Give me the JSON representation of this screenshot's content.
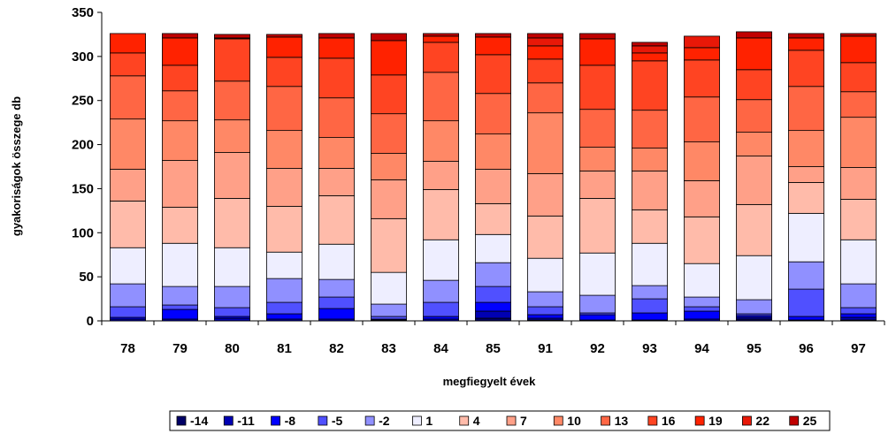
{
  "chart_data": {
    "type": "bar",
    "stacked": true,
    "title": "",
    "xlabel": "megfiegyelt évek",
    "ylabel": "gyakoriságok összege db",
    "ylim": [
      0,
      350
    ],
    "yticks": [
      0,
      50,
      100,
      150,
      200,
      250,
      300,
      350
    ],
    "grid": false,
    "legend_position": "bottom",
    "categories": [
      "78",
      "79",
      "80",
      "81",
      "82",
      "83",
      "84",
      "85",
      "91",
      "92",
      "93",
      "94",
      "95",
      "96",
      "97"
    ],
    "series": [
      {
        "name": "-14",
        "color": "#000066",
        "values": [
          0,
          0,
          0,
          0,
          0,
          0,
          0,
          3,
          1,
          0,
          0,
          0,
          2,
          0,
          1
        ]
      },
      {
        "name": "-11",
        "color": "#0000B3",
        "values": [
          2,
          2,
          3,
          2,
          2,
          1,
          2,
          8,
          2,
          1,
          1,
          2,
          2,
          1,
          3
        ]
      },
      {
        "name": "-8",
        "color": "#0000FF",
        "values": [
          2,
          11,
          2,
          6,
          12,
          1,
          3,
          10,
          4,
          6,
          8,
          9,
          2,
          4,
          4
        ]
      },
      {
        "name": "-5",
        "color": "#5050FF",
        "values": [
          12,
          5,
          10,
          13,
          13,
          3,
          16,
          18,
          9,
          2,
          16,
          5,
          2,
          31,
          7
        ]
      },
      {
        "name": "-2",
        "color": "#9090FF",
        "values": [
          26,
          21,
          24,
          27,
          20,
          14,
          25,
          27,
          17,
          20,
          15,
          11,
          16,
          31,
          27
        ]
      },
      {
        "name": "1",
        "color": "#EEEEFF",
        "values": [
          41,
          49,
          44,
          30,
          40,
          36,
          46,
          32,
          38,
          48,
          48,
          38,
          50,
          55,
          50
        ]
      },
      {
        "name": "4",
        "color": "#FFBBAA",
        "values": [
          53,
          41,
          56,
          52,
          55,
          61,
          57,
          35,
          48,
          62,
          38,
          53,
          58,
          35,
          46
        ]
      },
      {
        "name": "7",
        "color": "#FFA088",
        "values": [
          36,
          53,
          52,
          43,
          31,
          44,
          32,
          39,
          48,
          31,
          44,
          41,
          55,
          18,
          36
        ]
      },
      {
        "name": "10",
        "color": "#FF8866",
        "values": [
          57,
          45,
          37,
          43,
          35,
          30,
          46,
          40,
          69,
          27,
          26,
          44,
          27,
          41,
          57
        ]
      },
      {
        "name": "13",
        "color": "#FF6644",
        "values": [
          49,
          34,
          44,
          50,
          45,
          45,
          55,
          46,
          34,
          43,
          43,
          51,
          37,
          50,
          29
        ]
      },
      {
        "name": "16",
        "color": "#FF4422",
        "values": [
          26,
          29,
          48,
          33,
          45,
          44,
          34,
          44,
          27,
          50,
          56,
          42,
          34,
          41,
          33
        ]
      },
      {
        "name": "19",
        "color": "#FF2200",
        "values": [
          22,
          31,
          1,
          23,
          23,
          39,
          7,
          20,
          15,
          30,
          9,
          14,
          36,
          14,
          30
        ]
      },
      {
        "name": "22",
        "color": "#E81808",
        "values": [
          0,
          0,
          0,
          0,
          0,
          0,
          0,
          0,
          9,
          0,
          8,
          13,
          0,
          0,
          0
        ]
      },
      {
        "name": "25",
        "color": "#C00000",
        "values": [
          0,
          5,
          4,
          3,
          5,
          8,
          3,
          4,
          5,
          6,
          4,
          0,
          7,
          5,
          3
        ]
      }
    ]
  }
}
